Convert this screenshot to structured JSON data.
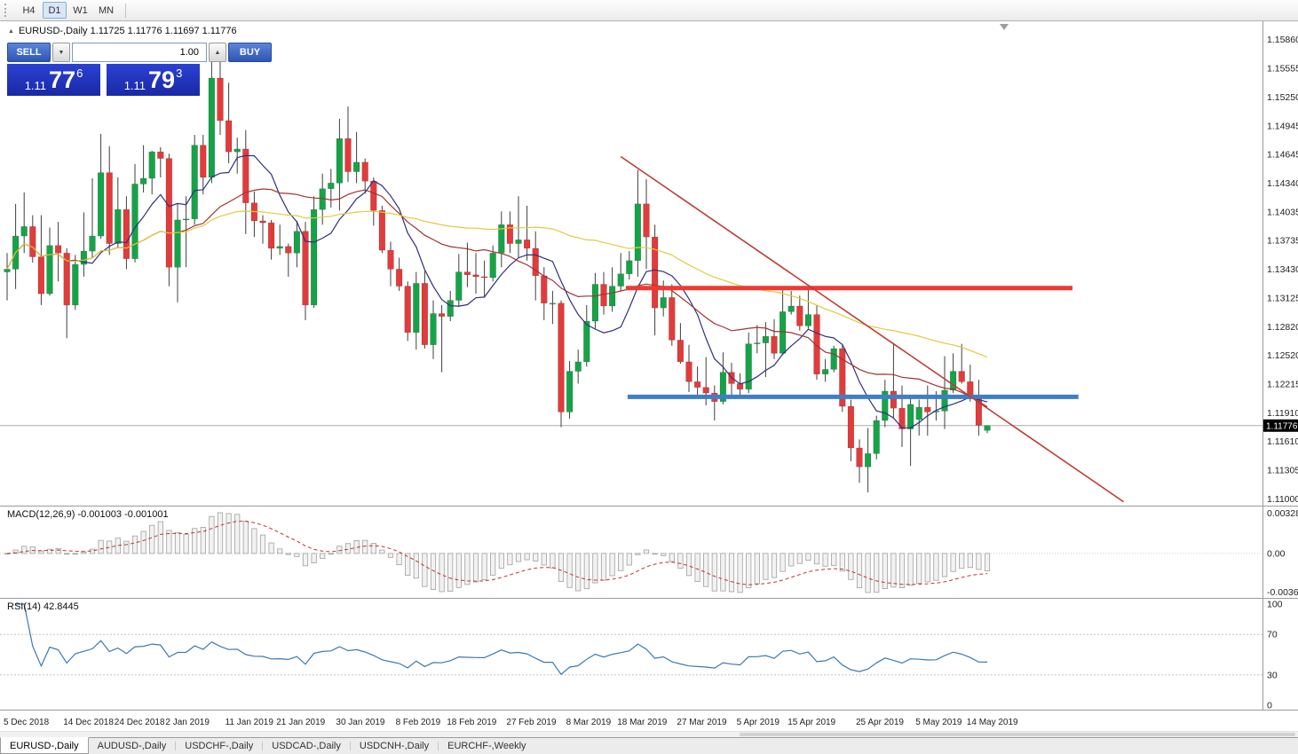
{
  "toolbar": {
    "timeframes": [
      {
        "label": "H4",
        "active": false
      },
      {
        "label": "D1",
        "active": true
      },
      {
        "label": "W1",
        "active": false
      },
      {
        "label": "MN",
        "active": false
      }
    ]
  },
  "chart_header": {
    "collapse_icon": "▲",
    "text": "EURUSD-,Daily 1.11725 1.11776 1.11697 1.11776"
  },
  "trade_panel": {
    "sell_label": "SELL",
    "buy_label": "BUY",
    "volume": "1.00",
    "volume_down_icon": "▼",
    "volume_up_icon": "▲",
    "sell_price": {
      "prefix": "1.11",
      "big": "77",
      "sup": "6"
    },
    "buy_price": {
      "prefix": "1.11",
      "big": "79",
      "sup": "3"
    }
  },
  "price_scale": {
    "labels": [
      "1.15860",
      "1.15555",
      "1.15250",
      "1.14945",
      "1.14645",
      "1.14340",
      "1.14035",
      "1.13735",
      "1.13430",
      "1.13125",
      "1.12820",
      "1.12520",
      "1.12215",
      "1.11910",
      "1.11610",
      "1.11305",
      "1.11000"
    ],
    "current": {
      "text": "1.11776",
      "price": 1.11776
    }
  },
  "time_axis": {
    "labels": [
      {
        "text": "5 Dec 2018",
        "index": 0
      },
      {
        "text": "14 Dec 2018",
        "index": 7
      },
      {
        "text": "24 Dec 2018",
        "index": 13
      },
      {
        "text": "2 Jan 2019",
        "index": 19
      },
      {
        "text": "11 Jan 2019",
        "index": 26
      },
      {
        "text": "21 Jan 2019",
        "index": 32
      },
      {
        "text": "30 Jan 2019",
        "index": 39
      },
      {
        "text": "8 Feb 2019",
        "index": 46
      },
      {
        "text": "18 Feb 2019",
        "index": 52
      },
      {
        "text": "27 Feb 2019",
        "index": 59
      },
      {
        "text": "8 Mar 2019",
        "index": 66
      },
      {
        "text": "18 Mar 2019",
        "index": 72
      },
      {
        "text": "27 Mar 2019",
        "index": 79
      },
      {
        "text": "5 Apr 2019",
        "index": 86
      },
      {
        "text": "15 Apr 2019",
        "index": 92
      },
      {
        "text": "25 Apr 2019",
        "index": 100
      },
      {
        "text": "5 May 2019",
        "index": 107
      },
      {
        "text": "14 May 2019",
        "index": 113
      }
    ]
  },
  "indicators": {
    "macd": {
      "header": "MACD(12,26,9) -0.001003 -0.001001",
      "fast": 12,
      "slow": 26,
      "signal": 9,
      "scale_top": "0.003287",
      "scale_zero": "0.00",
      "scale_bottom": "-0.003659"
    },
    "rsi": {
      "header": "RSI(14) 42.8445",
      "period": 14,
      "scale_labels": [
        "100",
        "70",
        "30",
        "0"
      ],
      "level_lines": [
        70,
        30
      ]
    }
  },
  "overlays": {
    "resistance_line": {
      "price": 1.1323,
      "from_index": 72.6,
      "to_index": 125,
      "width": 5
    },
    "support_line": {
      "price": 1.1208,
      "from_index": 72.8,
      "to_index": 125.7,
      "width": 5
    },
    "trendline": {
      "from": {
        "index": 72,
        "price": 1.1462
      },
      "to": {
        "index": 131,
        "price": 1.1097
      },
      "width": 1.6
    }
  },
  "moving_averages": [
    {
      "name": "ma-fast",
      "period": 8,
      "color": "#30308p-replaced",
      "width": 1.2
    },
    {
      "name": "ma-mid",
      "period": 21,
      "color": "#A03333",
      "width": 1.2
    },
    {
      "name": "ma-slow",
      "period": 55,
      "color": "#E0CC3C",
      "width": 1.2
    }
  ],
  "colors": {
    "bull": "#16A348",
    "bear": "#E23B3B",
    "wick": "#3f3f3f",
    "bid_line": "#ABABAB",
    "ma_fast": "#2F2F7F",
    "ma_mid": "#A03333",
    "ma_slow": "#E0CC3C",
    "macd_hist_fill": "#F2F2F2",
    "macd_hist_stroke": "#9F9F9F",
    "macd_signal": "#C23232",
    "rsi_line": "#3C78B4",
    "resistance": "#ED3B33",
    "support": "#3E7FC4",
    "trendline": "#C03A34",
    "badge_bg": "#000000",
    "badge_text": "#FFFFFF",
    "separator": "#9A9A9A"
  },
  "icons": {
    "chart_shift_marker": "▼"
  },
  "chart_data": {
    "type": "candlestick",
    "symbol": "EURUSD-",
    "timeframe": "Daily",
    "title": "EURUSD-,Daily",
    "price_range": {
      "top": 1.1605,
      "bottom": 1.1093
    },
    "candles": [
      [
        1.134,
        1.136,
        1.131,
        1.1343
      ],
      [
        1.1343,
        1.1412,
        1.1322,
        1.1378
      ],
      [
        1.1378,
        1.1424,
        1.136,
        1.1388
      ],
      [
        1.1388,
        1.14,
        1.135,
        1.1356
      ],
      [
        1.1356,
        1.14,
        1.1305,
        1.1317
      ],
      [
        1.1317,
        1.1387,
        1.1315,
        1.1368
      ],
      [
        1.1368,
        1.1393,
        1.133,
        1.136
      ],
      [
        1.136,
        1.1365,
        1.127,
        1.1305
      ],
      [
        1.1305,
        1.1358,
        1.13,
        1.1348
      ],
      [
        1.1348,
        1.1403,
        1.1335,
        1.1362
      ],
      [
        1.1362,
        1.1439,
        1.1355,
        1.1378
      ],
      [
        1.1378,
        1.1486,
        1.1375,
        1.1445
      ],
      [
        1.1445,
        1.1473,
        1.1358,
        1.137
      ],
      [
        1.137,
        1.144,
        1.1365,
        1.1406
      ],
      [
        1.1406,
        1.142,
        1.1343,
        1.1354
      ],
      [
        1.1354,
        1.1454,
        1.135,
        1.1433
      ],
      [
        1.1433,
        1.1474,
        1.1424,
        1.1439
      ],
      [
        1.1439,
        1.1468,
        1.1422,
        1.1467
      ],
      [
        1.1467,
        1.1472,
        1.144,
        1.146
      ],
      [
        1.146,
        1.1465,
        1.1325,
        1.1345
      ],
      [
        1.1345,
        1.1412,
        1.1308,
        1.1395
      ],
      [
        1.1395,
        1.142,
        1.1345,
        1.1396
      ],
      [
        1.1396,
        1.1485,
        1.139,
        1.1474
      ],
      [
        1.1474,
        1.1485,
        1.1422,
        1.144
      ],
      [
        1.144,
        1.157,
        1.1434,
        1.1545
      ],
      [
        1.1545,
        1.1572,
        1.1485,
        1.15
      ],
      [
        1.15,
        1.154,
        1.1455,
        1.1467
      ],
      [
        1.1467,
        1.1482,
        1.1444,
        1.147
      ],
      [
        1.147,
        1.149,
        1.138,
        1.1413
      ],
      [
        1.1413,
        1.1425,
        1.1377,
        1.1394
      ],
      [
        1.1394,
        1.14,
        1.137,
        1.1392
      ],
      [
        1.1392,
        1.1395,
        1.1353,
        1.1365
      ],
      [
        1.1365,
        1.139,
        1.1358,
        1.1367
      ],
      [
        1.1367,
        1.137,
        1.1335,
        1.136
      ],
      [
        1.136,
        1.1394,
        1.1345,
        1.1383
      ],
      [
        1.1383,
        1.1393,
        1.1289,
        1.1305
      ],
      [
        1.1305,
        1.142,
        1.1302,
        1.1406
      ],
      [
        1.1406,
        1.1444,
        1.139,
        1.1428
      ],
      [
        1.1428,
        1.1449,
        1.1408,
        1.1434
      ],
      [
        1.1434,
        1.1502,
        1.1405,
        1.1481
      ],
      [
        1.1481,
        1.1515,
        1.1435,
        1.1446
      ],
      [
        1.1446,
        1.1488,
        1.1434,
        1.1456
      ],
      [
        1.1456,
        1.146,
        1.1423,
        1.1436
      ],
      [
        1.1436,
        1.144,
        1.1389,
        1.1405
      ],
      [
        1.1405,
        1.141,
        1.136,
        1.1363
      ],
      [
        1.1363,
        1.1372,
        1.1325,
        1.1343
      ],
      [
        1.1343,
        1.1355,
        1.132,
        1.1325
      ],
      [
        1.1325,
        1.133,
        1.1267,
        1.1276
      ],
      [
        1.1276,
        1.134,
        1.1258,
        1.1328
      ],
      [
        1.1328,
        1.1341,
        1.1259,
        1.1263
      ],
      [
        1.1263,
        1.131,
        1.1248,
        1.1296
      ],
      [
        1.1296,
        1.1305,
        1.1234,
        1.1293
      ],
      [
        1.1293,
        1.132,
        1.1288,
        1.131
      ],
      [
        1.131,
        1.1359,
        1.1303,
        1.134
      ],
      [
        1.134,
        1.1371,
        1.1324,
        1.1337
      ],
      [
        1.1337,
        1.136,
        1.1317,
        1.1335
      ],
      [
        1.1335,
        1.1352,
        1.1313,
        1.1334
      ],
      [
        1.1334,
        1.1368,
        1.133,
        1.136
      ],
      [
        1.136,
        1.1404,
        1.1345,
        1.139
      ],
      [
        1.139,
        1.1404,
        1.136,
        1.137
      ],
      [
        1.137,
        1.142,
        1.1355,
        1.1374
      ],
      [
        1.1374,
        1.141,
        1.1352,
        1.1365
      ],
      [
        1.1365,
        1.1383,
        1.131,
        1.1336
      ],
      [
        1.1336,
        1.1345,
        1.1289,
        1.1307
      ],
      [
        1.1307,
        1.132,
        1.1285,
        1.1307
      ],
      [
        1.1307,
        1.131,
        1.1176,
        1.1192
      ],
      [
        1.1192,
        1.1246,
        1.1185,
        1.1235
      ],
      [
        1.1235,
        1.1258,
        1.1222,
        1.1245
      ],
      [
        1.1245,
        1.1305,
        1.124,
        1.1288
      ],
      [
        1.1288,
        1.1339,
        1.128,
        1.1327
      ],
      [
        1.1327,
        1.134,
        1.1295,
        1.1304
      ],
      [
        1.1304,
        1.1345,
        1.1298,
        1.1325
      ],
      [
        1.1325,
        1.136,
        1.132,
        1.1338
      ],
      [
        1.1338,
        1.1362,
        1.1332,
        1.1352
      ],
      [
        1.1352,
        1.1448,
        1.1335,
        1.1412
      ],
      [
        1.1412,
        1.1438,
        1.1343,
        1.1377
      ],
      [
        1.1377,
        1.139,
        1.1273,
        1.1302
      ],
      [
        1.1302,
        1.1331,
        1.1293,
        1.1313
      ],
      [
        1.1313,
        1.1327,
        1.1262,
        1.1268
      ],
      [
        1.1268,
        1.1286,
        1.1243,
        1.1245
      ],
      [
        1.1245,
        1.1263,
        1.1213,
        1.1224
      ],
      [
        1.1224,
        1.124,
        1.121,
        1.1218
      ],
      [
        1.1218,
        1.125,
        1.1199,
        1.1212
      ],
      [
        1.1212,
        1.122,
        1.1183,
        1.1203
      ],
      [
        1.1203,
        1.1255,
        1.12,
        1.1234
      ],
      [
        1.1234,
        1.1244,
        1.1206,
        1.1222
      ],
      [
        1.1222,
        1.1233,
        1.121,
        1.1216
      ],
      [
        1.1216,
        1.1276,
        1.1212,
        1.1264
      ],
      [
        1.1264,
        1.1284,
        1.1254,
        1.1265
      ],
      [
        1.1265,
        1.1287,
        1.1229,
        1.1272
      ],
      [
        1.1272,
        1.129,
        1.1248,
        1.1254
      ],
      [
        1.1254,
        1.1324,
        1.1252,
        1.1298
      ],
      [
        1.1298,
        1.132,
        1.1295,
        1.1304
      ],
      [
        1.1304,
        1.1315,
        1.1278,
        1.1283
      ],
      [
        1.1283,
        1.1324,
        1.128,
        1.1295
      ],
      [
        1.1295,
        1.1305,
        1.1226,
        1.1232
      ],
      [
        1.1232,
        1.1248,
        1.1224,
        1.1237
      ],
      [
        1.1237,
        1.1262,
        1.1234,
        1.1259
      ],
      [
        1.1259,
        1.1263,
        1.1192,
        1.1198
      ],
      [
        1.1198,
        1.1205,
        1.114,
        1.1154
      ],
      [
        1.1154,
        1.1163,
        1.1117,
        1.1134
      ],
      [
        1.1134,
        1.1175,
        1.1107,
        1.1148
      ],
      [
        1.1148,
        1.1188,
        1.1142,
        1.1183
      ],
      [
        1.1183,
        1.1226,
        1.1176,
        1.1214
      ],
      [
        1.1214,
        1.1265,
        1.1186,
        1.1196
      ],
      [
        1.1196,
        1.122,
        1.1155,
        1.1174
      ],
      [
        1.1174,
        1.1206,
        1.1135,
        1.12
      ],
      [
        1.1184,
        1.1205,
        1.1167,
        1.1197
      ],
      [
        1.1197,
        1.122,
        1.1167,
        1.1192
      ],
      [
        1.1192,
        1.1214,
        1.1183,
        1.1193
      ],
      [
        1.1193,
        1.1251,
        1.1174,
        1.1215
      ],
      [
        1.1215,
        1.1254,
        1.1212,
        1.1235
      ],
      [
        1.1235,
        1.1264,
        1.1222,
        1.1224
      ],
      [
        1.1224,
        1.1242,
        1.1203,
        1.1206
      ],
      [
        1.1206,
        1.1226,
        1.1167,
        1.1178
      ],
      [
        1.11725,
        1.11776,
        1.11697,
        1.11776
      ]
    ]
  },
  "tabs": [
    {
      "label": "EURUSD-,Daily",
      "active": true
    },
    {
      "label": "AUDUSD-,Daily",
      "active": false
    },
    {
      "label": "USDCHF-,Daily",
      "active": false
    },
    {
      "label": "USDCAD-,Daily",
      "active": false
    },
    {
      "label": "USDCNH-,Daily",
      "active": false
    },
    {
      "label": "EURCHF-,Weekly",
      "active": false
    }
  ]
}
